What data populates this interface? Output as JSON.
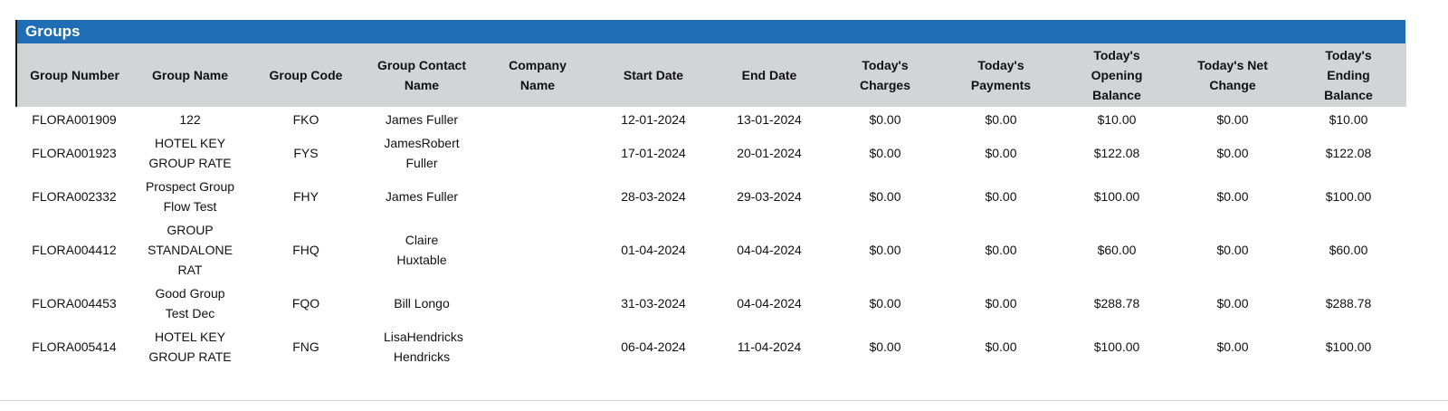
{
  "title": "Groups",
  "columns": [
    "Group Number",
    "Group Name",
    "Group Code",
    "Group Contact Name",
    "Company Name",
    "Start Date",
    "End Date",
    "Today's Charges",
    "Today's Payments",
    "Today's Opening Balance",
    "Today's Net Change",
    "Today's Ending Balance"
  ],
  "rows": [
    [
      "FLORA001909",
      "122",
      "FKO",
      "James Fuller",
      "",
      "12-01-2024",
      "13-01-2024",
      "$0.00",
      "$0.00",
      "$10.00",
      "$0.00",
      "$10.00"
    ],
    [
      "FLORA001923",
      "HOTEL KEY GROUP RATE",
      "FYS",
      "JamesRobert Fuller",
      "",
      "17-01-2024",
      "20-01-2024",
      "$0.00",
      "$0.00",
      "$122.08",
      "$0.00",
      "$122.08"
    ],
    [
      "FLORA002332",
      "Prospect Group Flow Test",
      "FHY",
      "James Fuller",
      "",
      "28-03-2024",
      "29-03-2024",
      "$0.00",
      "$0.00",
      "$100.00",
      "$0.00",
      "$100.00"
    ],
    [
      "FLORA004412",
      "GROUP STANDALONE RAT",
      "FHQ",
      "Claire Huxtable",
      "",
      "01-04-2024",
      "04-04-2024",
      "$0.00",
      "$0.00",
      "$60.00",
      "$0.00",
      "$60.00"
    ],
    [
      "FLORA004453",
      "Good Group Test Dec",
      "FQO",
      "Bill Longo",
      "",
      "31-03-2024",
      "04-04-2024",
      "$0.00",
      "$0.00",
      "$288.78",
      "$0.00",
      "$288.78"
    ],
    [
      "FLORA005414",
      "HOTEL KEY GROUP RATE",
      "FNG",
      "LisaHendricks Hendricks",
      "",
      "06-04-2024",
      "11-04-2024",
      "$0.00",
      "$0.00",
      "$100.00",
      "$0.00",
      "$100.00"
    ]
  ],
  "colors": {
    "title_bar": "#1f6db5",
    "header_bg": "#d3d4d6"
  }
}
